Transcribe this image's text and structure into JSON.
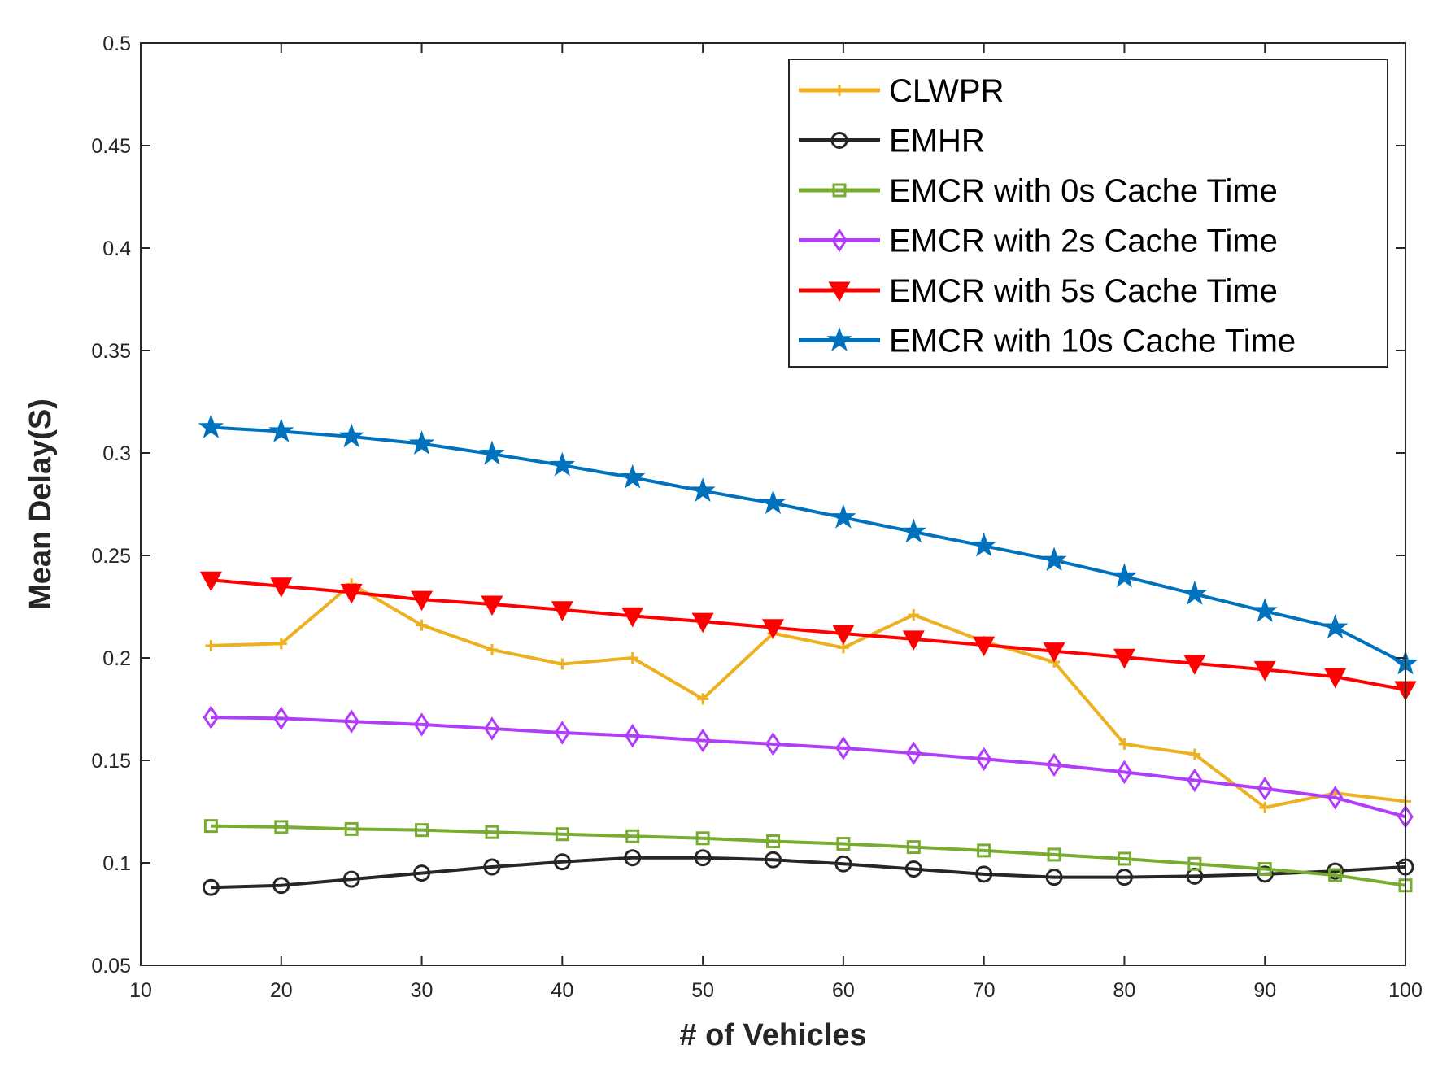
{
  "chart_data": {
    "type": "line",
    "title": "",
    "xlabel": "# of Vehicles",
    "ylabel": "Mean Delay(S)",
    "xlim": [
      10,
      100
    ],
    "ylim": [
      0.05,
      0.5
    ],
    "xticks": [
      10,
      20,
      30,
      40,
      50,
      60,
      70,
      80,
      90,
      100
    ],
    "yticks": [
      0.05,
      0.1,
      0.15,
      0.2,
      0.25,
      0.3,
      0.35,
      0.4,
      0.45,
      0.5
    ],
    "xtick_labels": [
      "10",
      "20",
      "30",
      "40",
      "50",
      "60",
      "70",
      "80",
      "90",
      "100"
    ],
    "ytick_labels": [
      "0.05",
      "0.1",
      "0.15",
      "0.2",
      "0.25",
      "0.3",
      "0.35",
      "0.4",
      "0.45",
      "0.5"
    ],
    "grid": false,
    "legend_position": "top-right",
    "x": [
      15,
      20,
      25,
      30,
      35,
      40,
      45,
      50,
      55,
      60,
      65,
      70,
      75,
      80,
      85,
      90,
      95,
      100
    ],
    "series": [
      {
        "name": "CLWPR",
        "color": "#EDB120",
        "marker": "plus",
        "values": [
          0.206,
          0.207,
          0.236,
          0.216,
          0.204,
          0.197,
          0.2,
          0.18,
          0.212,
          0.205,
          0.221,
          0.208,
          0.198,
          0.158,
          0.153,
          0.127,
          0.134,
          0.13
        ]
      },
      {
        "name": "EMHR",
        "color": "#262626",
        "marker": "circle",
        "values": [
          0.088,
          0.089,
          0.092,
          0.095,
          0.098,
          0.1005,
          0.1025,
          0.1025,
          0.1015,
          0.0995,
          0.097,
          0.0945,
          0.093,
          0.093,
          0.0935,
          0.0945,
          0.096,
          0.098
        ]
      },
      {
        "name": "EMCR with 0s Cache Time",
        "color": "#77AC30",
        "marker": "square",
        "values": [
          0.118,
          0.1175,
          0.1165,
          0.116,
          0.115,
          0.114,
          0.113,
          0.112,
          0.1105,
          0.1093,
          0.1077,
          0.106,
          0.104,
          0.102,
          0.0995,
          0.097,
          0.094,
          0.089
        ]
      },
      {
        "name": "EMCR with 2s Cache Time",
        "color": "#B13DFB",
        "marker": "diamond",
        "values": [
          0.171,
          0.1705,
          0.169,
          0.1675,
          0.1655,
          0.1635,
          0.162,
          0.1597,
          0.158,
          0.156,
          0.1535,
          0.1507,
          0.1478,
          0.1443,
          0.1403,
          0.1362,
          0.1318,
          0.1225
        ]
      },
      {
        "name": "EMCR with 5s Cache Time",
        "color": "#FF0000",
        "marker": "triangle-down",
        "values": [
          0.238,
          0.235,
          0.232,
          0.2285,
          0.2262,
          0.2235,
          0.2205,
          0.2178,
          0.2148,
          0.2119,
          0.2092,
          0.2063,
          0.2033,
          0.2003,
          0.1973,
          0.1943,
          0.1908,
          0.1845
        ]
      },
      {
        "name": "EMCR with 10s Cache Time",
        "color": "#0072BD",
        "marker": "star",
        "values": [
          0.3125,
          0.3105,
          0.308,
          0.3045,
          0.2995,
          0.294,
          0.288,
          0.2815,
          0.2755,
          0.2685,
          0.2615,
          0.2547,
          0.2477,
          0.2397,
          0.2312,
          0.2228,
          0.2148,
          0.1972
        ]
      }
    ]
  }
}
